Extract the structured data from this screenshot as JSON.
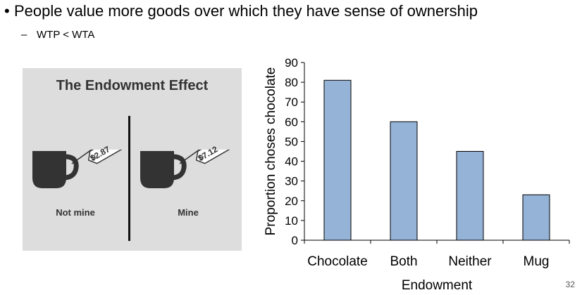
{
  "slide": {
    "bullet": "People value more goods over which they have sense of ownership",
    "sub_bullet": "WTP < WTA",
    "page_number": "32"
  },
  "illustration": {
    "title": "The Endowment Effect",
    "left_price": "$2.87",
    "right_price": "$7.12",
    "left_caption": "Not mine",
    "right_caption": "Mine"
  },
  "chart_data": {
    "type": "bar",
    "categories": [
      "Chocolate",
      "Both",
      "Neither",
      "Mug"
    ],
    "values": [
      81,
      60,
      45,
      23
    ],
    "title": "",
    "xlabel": "Endowment",
    "ylabel": "Proportion choses chocolate",
    "ylim": [
      0,
      90
    ],
    "yticks": [
      0,
      10,
      20,
      30,
      40,
      50,
      60,
      70,
      80,
      90
    ],
    "bar_color": "#95b3d7",
    "bar_edge_color": "#000000",
    "grid": false,
    "legend": "none"
  }
}
